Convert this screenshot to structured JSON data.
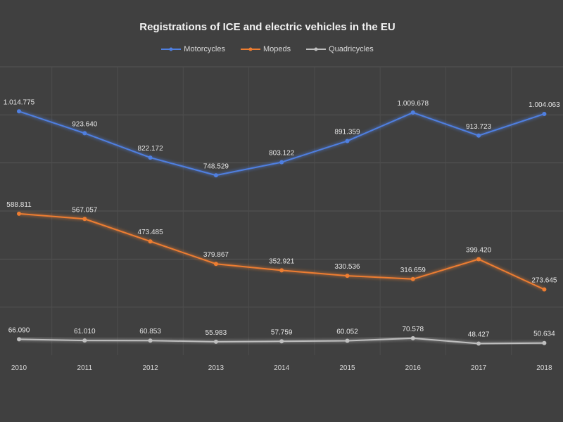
{
  "chart_data": {
    "type": "line",
    "title": "Registrations of ICE and  electric vehicles in the EU",
    "xlabel": "",
    "ylabel": "",
    "categories": [
      "2010",
      "2011",
      "2012",
      "2013",
      "2014",
      "2015",
      "2016",
      "2017",
      "2018"
    ],
    "ylim": [
      0,
      1200000
    ],
    "grid": true,
    "legend_position": "top",
    "series": [
      {
        "name": "Motorcycles",
        "color": "#4f7fe0",
        "values": [
          1014775,
          923640,
          822172,
          748529,
          803122,
          891359,
          1009678,
          913723,
          1004063
        ],
        "labels": [
          "1.014.775",
          "923.640",
          "822.172",
          "748.529",
          "803.122",
          "891.359",
          "1.009.678",
          "913.723",
          "1.004.063"
        ]
      },
      {
        "name": "Mopeds",
        "color": "#ed7d31",
        "values": [
          588811,
          567057,
          473485,
          379867,
          352921,
          330536,
          316659,
          399420,
          273645
        ],
        "labels": [
          "588.811",
          "567.057",
          "473.485",
          "379.867",
          "352.921",
          "330.536",
          "316.659",
          "399.420",
          "273.645"
        ]
      },
      {
        "name": "Quadricycles",
        "color": "#bfbfbf",
        "values": [
          66090,
          61010,
          60853,
          55983,
          57759,
          60052,
          70578,
          48427,
          50634
        ],
        "labels": [
          "66.090",
          "61.010",
          "60.853",
          "55.983",
          "57.759",
          "60.052",
          "70.578",
          "48.427",
          "50.634"
        ]
      }
    ]
  }
}
